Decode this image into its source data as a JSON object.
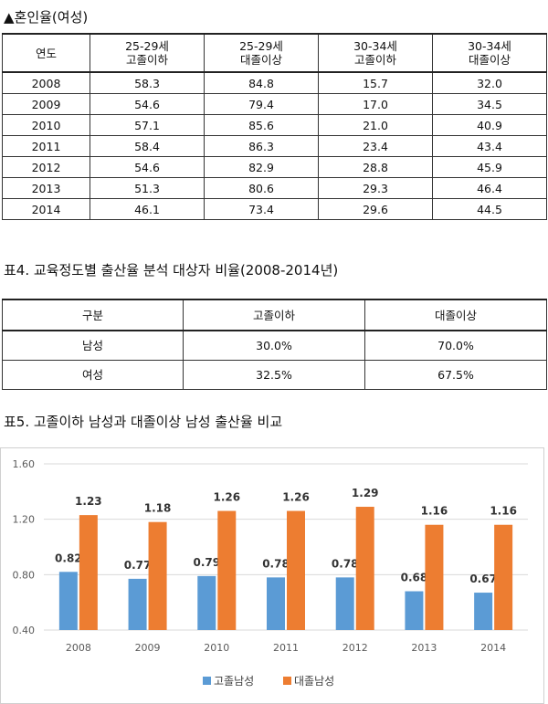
{
  "table1": {
    "title": "▲혼인율(여성)",
    "headers": [
      [
        "연도"
      ],
      [
        "25-29세",
        "고졸이하"
      ],
      [
        "25-29세",
        "대졸이상"
      ],
      [
        "30-34세",
        "고졸이하"
      ],
      [
        "30-34세",
        "대졸이상"
      ]
    ],
    "rows": [
      [
        "2008",
        "58.3",
        "84.8",
        "15.7",
        "32.0"
      ],
      [
        "2009",
        "54.6",
        "79.4",
        "17.0",
        "34.5"
      ],
      [
        "2010",
        "57.1",
        "85.6",
        "21.0",
        "40.9"
      ],
      [
        "2011",
        "58.4",
        "86.3",
        "23.4",
        "43.4"
      ],
      [
        "2012",
        "54.6",
        "82.9",
        "28.8",
        "45.9"
      ],
      [
        "2013",
        "51.3",
        "80.6",
        "29.3",
        "46.4"
      ],
      [
        "2014",
        "46.1",
        "73.4",
        "29.6",
        "44.5"
      ]
    ]
  },
  "table2": {
    "title": "표4. 교육정도별 출산율 분석 대상자 비율(2008-2014년)",
    "headers": [
      "구분",
      "고졸이하",
      "대졸이상"
    ],
    "rows": [
      [
        "남성",
        "30.0%",
        "70.0%"
      ],
      [
        "여성",
        "32.5%",
        "67.5%"
      ]
    ]
  },
  "chart_title": "표5. 고졸이하 남성과 대졸이상 남성 출산율 비교",
  "chart_data": {
    "type": "bar",
    "categories": [
      "2008",
      "2009",
      "2010",
      "2011",
      "2012",
      "2013",
      "2014"
    ],
    "series": [
      {
        "name": "고졸남성",
        "color": "#5b9bd5",
        "values": [
          0.82,
          0.77,
          0.79,
          0.78,
          0.78,
          0.68,
          0.67
        ]
      },
      {
        "name": "대졸남성",
        "color": "#ed7d31",
        "values": [
          1.23,
          1.18,
          1.26,
          1.26,
          1.29,
          1.16,
          1.16
        ]
      }
    ],
    "ylim": [
      0.4,
      1.6
    ],
    "yticks": [
      "0.40",
      "0.80",
      "1.20",
      "1.60"
    ],
    "grid": true,
    "legend": "bottom"
  }
}
